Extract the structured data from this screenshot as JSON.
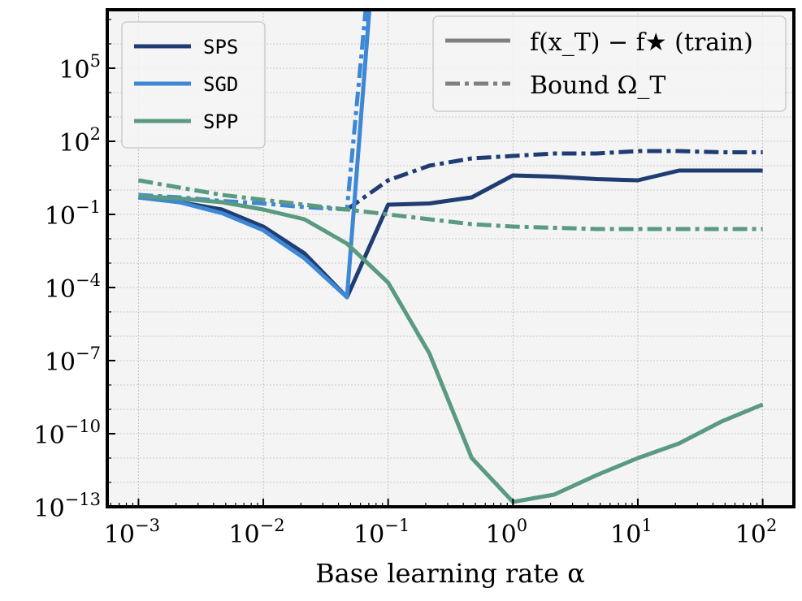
{
  "chart_data": {
    "type": "line",
    "xscale": "log",
    "yscale": "log",
    "xlim_log10": [
      -3.25,
      2.25
    ],
    "ylim_log10": [
      -13,
      7.4
    ],
    "xlabel": "Base learning rate α",
    "ylabel": "",
    "x_ticks": [
      {
        "exp": -3,
        "label": "10",
        "sup": "−3"
      },
      {
        "exp": -2,
        "label": "10",
        "sup": "−2"
      },
      {
        "exp": -1,
        "label": "10",
        "sup": "−1"
      },
      {
        "exp": 0,
        "label": "10",
        "sup": "0"
      },
      {
        "exp": 1,
        "label": "10",
        "sup": "1"
      },
      {
        "exp": 2,
        "label": "10",
        "sup": "2"
      }
    ],
    "y_ticks": [
      {
        "exp": 5,
        "label": "10",
        "sup": "5"
      },
      {
        "exp": 2,
        "label": "10",
        "sup": "2"
      },
      {
        "exp": -1,
        "label": "10",
        "sup": "−1"
      },
      {
        "exp": -4,
        "label": "10",
        "sup": "−4"
      },
      {
        "exp": -7,
        "label": "10",
        "sup": "−7"
      },
      {
        "exp": -10,
        "label": "10",
        "sup": "−10"
      },
      {
        "exp": -13,
        "label": "10",
        "sup": "−13"
      }
    ],
    "series": [
      {
        "name": "SPS",
        "color": "#1f3d73",
        "style": "solid",
        "metric": "f(x_T) − f★ (train)",
        "x_log10": [
          -3,
          -2.67,
          -2.33,
          -2,
          -1.67,
          -1.33,
          -1,
          -0.67,
          -0.33,
          0,
          0.33,
          0.67,
          1,
          1.33,
          1.67,
          2
        ],
        "y_log10": [
          -0.3,
          -0.5,
          -0.8,
          -1.5,
          -2.6,
          -4.4,
          -0.6,
          -0.55,
          -0.3,
          0.6,
          0.55,
          0.45,
          0.4,
          0.8,
          0.8,
          0.8
        ]
      },
      {
        "name": "SPS",
        "color": "#1f3d73",
        "style": "dashdot",
        "metric": "Bound Ω_T",
        "x_log10": [
          -1.33,
          -1,
          -0.67,
          -0.33,
          0,
          0.33,
          0.67,
          1,
          1.33,
          1.67,
          2
        ],
        "y_log10": [
          -0.8,
          0.4,
          1.0,
          1.3,
          1.4,
          1.5,
          1.5,
          1.6,
          1.6,
          1.55,
          1.55
        ]
      },
      {
        "name": "SGD",
        "color": "#3d87d4",
        "style": "solid",
        "metric": "f(x_T) − f★ (train)",
        "x_log10": [
          -3,
          -2.67,
          -2.33,
          -2,
          -1.67,
          -1.33,
          -1.15
        ],
        "y_log10": [
          -0.3,
          -0.5,
          -0.95,
          -1.65,
          -2.8,
          -4.4,
          7.4
        ]
      },
      {
        "name": "SGD",
        "color": "#3d87d4",
        "style": "dashdot",
        "metric": "Bound Ω_T",
        "x_log10": [
          -3,
          -2.67,
          -2.33,
          -2,
          -1.67,
          -1.33,
          -1.18
        ],
        "y_log10": [
          -0.2,
          -0.3,
          -0.45,
          -0.55,
          -0.7,
          -0.8,
          7.4
        ]
      },
      {
        "name": "SPP",
        "color": "#5a9a80",
        "style": "solid",
        "metric": "f(x_T) − f★ (train)",
        "x_log10": [
          -3,
          -2.67,
          -2.33,
          -2,
          -1.67,
          -1.33,
          -1,
          -0.67,
          -0.33,
          0,
          0.33,
          0.67,
          1,
          1.33,
          1.67,
          2
        ],
        "y_log10": [
          -0.25,
          -0.35,
          -0.5,
          -0.8,
          -1.2,
          -2.2,
          -3.8,
          -6.7,
          -11.0,
          -12.8,
          -12.5,
          -11.7,
          -11.0,
          -10.4,
          -9.5,
          -8.8
        ]
      },
      {
        "name": "SPP",
        "color": "#5a9a80",
        "style": "dashdot",
        "metric": "Bound Ω_T",
        "x_log10": [
          -3,
          -2.67,
          -2.33,
          -2,
          -1.67,
          -1.33,
          -1,
          -0.67,
          -0.33,
          0,
          0.33,
          0.67,
          1,
          1.33,
          1.67,
          2
        ],
        "y_log10": [
          0.4,
          0.1,
          -0.2,
          -0.4,
          -0.6,
          -0.8,
          -1.0,
          -1.2,
          -1.4,
          -1.5,
          -1.55,
          -1.6,
          -1.6,
          -1.6,
          -1.6,
          -1.6
        ]
      }
    ],
    "legend_methods": [
      {
        "label": "SPS",
        "color": "#1f3d73"
      },
      {
        "label": "SGD",
        "color": "#3d87d4"
      },
      {
        "label": "SPP",
        "color": "#5a9a80"
      }
    ],
    "legend_metrics": [
      {
        "label": "f(x_T) − f★ (train)",
        "style": "solid",
        "color": "#808080"
      },
      {
        "label": "Bound Ω_T",
        "style": "dashdot",
        "color": "#808080"
      }
    ],
    "legend_method_position": "top-left",
    "legend_metric_position": "top-right",
    "grid": true
  }
}
